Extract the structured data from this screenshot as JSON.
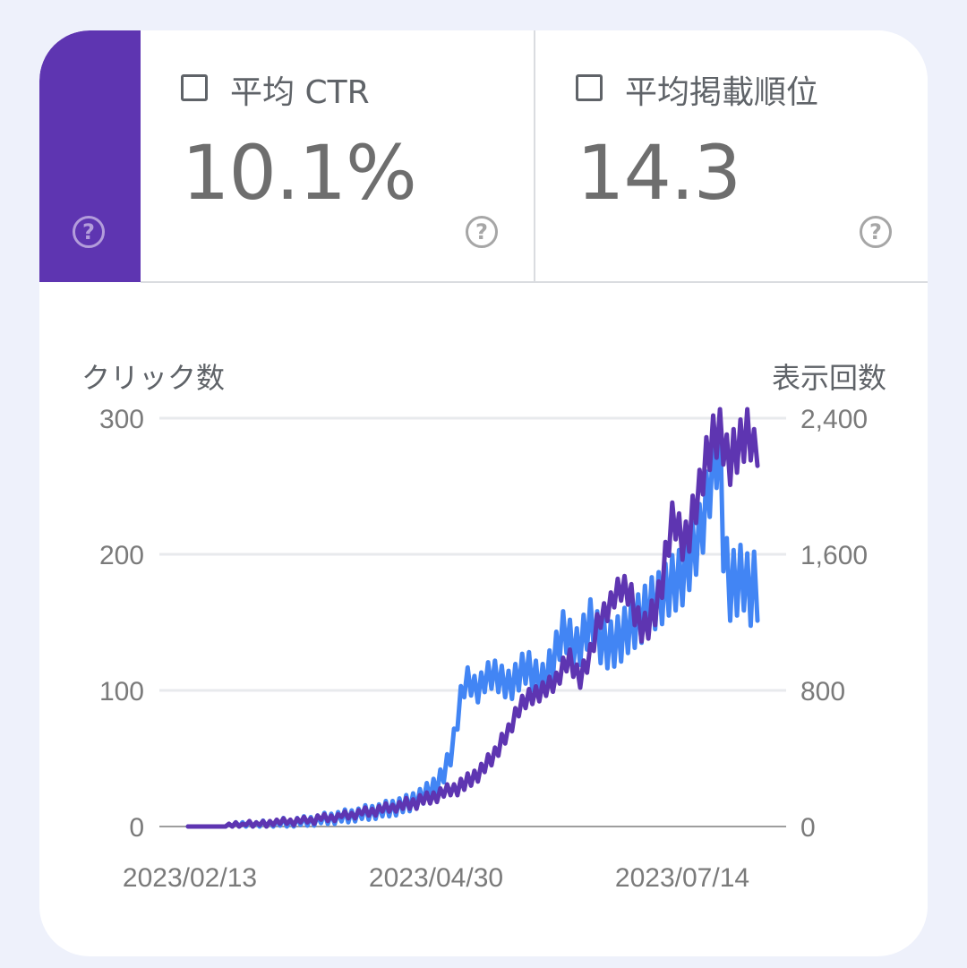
{
  "tiles": {
    "ctr": {
      "label": "平均 CTR",
      "value": "10.1%"
    },
    "position": {
      "label": "平均掲載順位",
      "value": "14.3"
    },
    "help_glyph": "?"
  },
  "colors": {
    "clicks": "#5e35b1",
    "impressions": "#4285f4",
    "grid": "#e8eaed",
    "axis_text": "#7a7a7a",
    "background": "#eef1fb"
  },
  "icons": [
    "checkbox-icon",
    "help-icon"
  ],
  "chart_data": {
    "type": "line",
    "left_axis_title": "クリック数",
    "right_axis_title": "表示回数",
    "left_ylim": [
      0,
      300
    ],
    "right_ylim": [
      0,
      2400
    ],
    "left_ticks": [
      "0",
      "100",
      "200",
      "300"
    ],
    "right_ticks": [
      "0",
      "800",
      "1,600",
      "2,400"
    ],
    "x_ticks": [
      "2023/02/13",
      "2023/04/30",
      "2023/07/14"
    ],
    "x_start": "2023/02/13",
    "x_end": "2023/08/07",
    "grid": true,
    "series": [
      {
        "axis": "left",
        "color": "#5e35b1",
        "values": [
          0,
          0,
          0,
          0,
          0,
          0,
          0,
          0,
          0,
          0,
          0,
          0,
          1,
          1,
          1,
          1,
          1,
          2,
          2,
          2,
          2,
          2,
          2,
          2,
          3,
          3,
          3,
          3,
          3,
          4,
          4,
          4,
          4,
          4,
          4,
          5,
          5,
          5,
          6,
          6,
          6,
          6,
          7,
          7,
          7,
          8,
          8,
          8,
          9,
          9,
          10,
          10,
          10,
          11,
          11,
          12,
          12,
          13,
          13,
          14,
          14,
          15,
          15,
          15,
          16,
          17,
          17,
          18,
          19,
          20,
          20,
          21,
          22,
          23,
          24,
          25,
          26,
          27,
          28,
          29,
          30,
          31,
          33,
          35,
          37,
          39,
          41,
          44,
          47,
          50,
          54,
          58,
          62,
          66,
          71,
          76,
          82,
          88,
          90,
          92,
          94,
          96,
          98,
          99,
          100,
          101,
          103,
          105,
          108,
          112,
          116,
          120,
          125,
          118,
          112,
          108,
          114,
          120,
          128,
          137,
          146,
          154,
          158,
          160,
          164,
          168,
          172,
          175,
          176,
          173,
          166,
          158,
          152,
          148,
          146,
          148,
          152,
          160,
          170,
          182,
          196,
          210,
          222,
          225,
          218,
          212,
          210,
          215,
          225,
          238,
          250,
          262,
          270,
          276,
          282,
          288,
          295,
          286,
          270,
          266,
          270,
          278,
          284,
          290,
          298,
          285,
          268,
          285
        ],
        "jitter": [
          0,
          0,
          0,
          0,
          0,
          0,
          0,
          0,
          0,
          0,
          0,
          0,
          1,
          -1,
          2,
          -1,
          1,
          -1,
          2,
          -2,
          1,
          -1,
          2,
          -2,
          1,
          -2,
          2,
          -1,
          3,
          -2,
          1,
          -3,
          2,
          -1,
          3,
          -2,
          1,
          -3,
          2,
          -1,
          3,
          -2,
          1,
          -3,
          2,
          -1,
          3,
          -2,
          1,
          -3,
          2,
          -1,
          4,
          -3,
          2,
          -4,
          3,
          -2,
          4,
          -3,
          2,
          -4,
          3,
          -2,
          5,
          -4,
          3,
          -5,
          4,
          -3,
          5,
          -4,
          3,
          -5,
          4,
          -3,
          5,
          -4,
          3,
          -6,
          5,
          -4,
          6,
          -5,
          4,
          -6,
          5,
          -4,
          6,
          -5,
          4,
          -6,
          6,
          -5,
          4,
          -6,
          5,
          -7,
          6,
          -5,
          7,
          -6,
          5,
          -7,
          6,
          -5,
          7,
          -6,
          5,
          -7,
          8,
          -6,
          5,
          -8,
          7,
          -6,
          8,
          -7,
          6,
          -8,
          10,
          -8,
          6,
          -9,
          8,
          -7,
          10,
          -9,
          8,
          -10,
          12,
          -10,
          9,
          -12,
          11,
          -10,
          14,
          -12,
          10,
          -14,
          13,
          -11,
          16,
          -14,
          12,
          -16,
          14,
          -13,
          18,
          -15,
          12,
          -18,
          16,
          -14,
          20,
          -17,
          14,
          -20,
          18,
          -15,
          22,
          -18,
          15,
          -22,
          20,
          -16,
          24,
          -20,
          16,
          -22,
          20,
          -18
        ]
      },
      {
        "axis": "right",
        "color": "#4285f4",
        "values": [
          0,
          0,
          0,
          0,
          0,
          0,
          0,
          0,
          0,
          0,
          0,
          0,
          5,
          5,
          5,
          5,
          10,
          10,
          10,
          10,
          10,
          10,
          10,
          15,
          15,
          15,
          15,
          20,
          20,
          20,
          20,
          25,
          25,
          30,
          30,
          30,
          35,
          35,
          40,
          40,
          45,
          45,
          50,
          50,
          55,
          55,
          60,
          60,
          65,
          70,
          70,
          75,
          80,
          80,
          85,
          90,
          90,
          95,
          100,
          105,
          110,
          115,
          120,
          125,
          130,
          140,
          150,
          160,
          170,
          180,
          195,
          210,
          230,
          250,
          280,
          310,
          360,
          420,
          520,
          640,
          760,
          820,
          860,
          840,
          820,
          810,
          830,
          860,
          880,
          890,
          900,
          880,
          860,
          840,
          820,
          840,
          870,
          900,
          920,
          930,
          920,
          900,
          880,
          860,
          850,
          880,
          920,
          980,
          1040,
          1100,
          1150,
          1130,
          1090,
          1060,
          1050,
          1080,
          1120,
          1160,
          1200,
          1180,
          1140,
          1100,
          1080,
          1060,
          1060,
          1080,
          1100,
          1120,
          1140,
          1160,
          1180,
          1200,
          1220,
          1240,
          1260,
          1280,
          1300,
          1320,
          1340,
          1360,
          1380,
          1400,
          1420,
          1440,
          1460,
          1480,
          1520,
          1560,
          1600,
          1660,
          1720,
          1800,
          1900,
          2000,
          2100,
          2180,
          2250,
          1700,
          1500,
          1400,
          1420,
          1440,
          1460,
          1480,
          1400,
          1380,
          1400,
          1420
        ],
        "jitter": [
          0,
          0,
          0,
          0,
          0,
          0,
          0,
          0,
          0,
          0,
          0,
          0,
          10,
          -10,
          20,
          -10,
          15,
          -15,
          20,
          -20,
          15,
          -15,
          25,
          -20,
          15,
          -25,
          20,
          -15,
          30,
          -20,
          15,
          -30,
          25,
          -20,
          30,
          -25,
          20,
          -30,
          25,
          -20,
          35,
          -30,
          25,
          -35,
          30,
          -25,
          40,
          -35,
          30,
          -40,
          35,
          -30,
          45,
          -40,
          35,
          -45,
          40,
          -35,
          50,
          -45,
          40,
          -50,
          45,
          -40,
          55,
          -50,
          45,
          -55,
          50,
          -45,
          60,
          -55,
          50,
          -60,
          55,
          -50,
          65,
          -60,
          55,
          -70,
          65,
          -60,
          75,
          -70,
          65,
          -80,
          75,
          -70,
          85,
          -80,
          75,
          -90,
          85,
          -80,
          95,
          -90,
          85,
          -100,
          95,
          -90,
          105,
          -100,
          95,
          -110,
          105,
          -100,
          115,
          -110,
          105,
          -120,
          115,
          -110,
          125,
          -120,
          115,
          -130,
          125,
          -120,
          135,
          -130,
          125,
          -140,
          135,
          -130,
          145,
          -140,
          135,
          -150,
          145,
          -140,
          155,
          -150,
          145,
          -160,
          155,
          -150,
          165,
          -160,
          155,
          -170,
          165,
          -160,
          175,
          -170,
          165,
          -180,
          175,
          -170,
          185,
          -180,
          175,
          -190,
          185,
          -180,
          195,
          -190,
          185,
          -200,
          195,
          -190,
          205,
          -200,
          195,
          -210,
          205,
          -200,
          215,
          -210,
          205,
          -220,
          215,
          -210
        ]
      }
    ]
  }
}
